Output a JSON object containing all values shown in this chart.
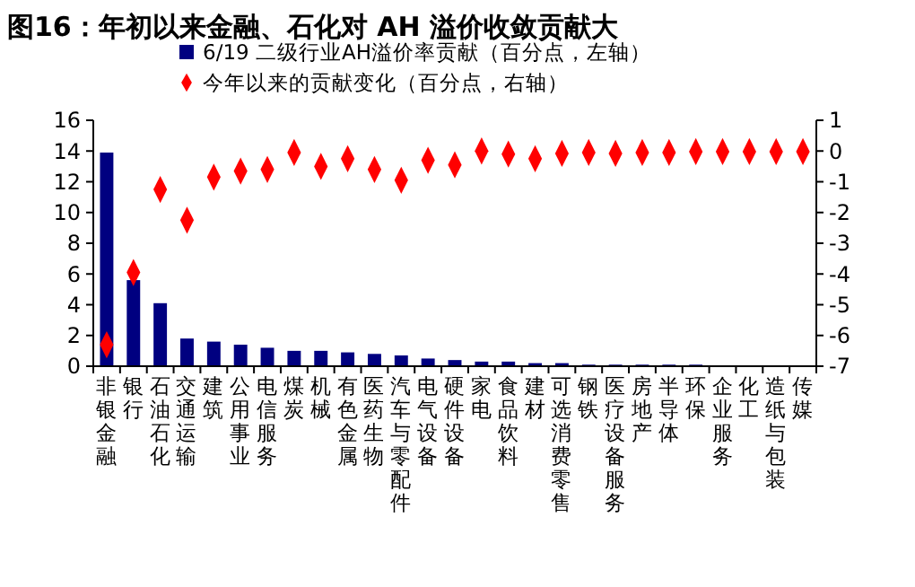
{
  "chart_data": {
    "type": "bar",
    "title": "图16：年初以来金融、石化对 AH 溢价收敛贡献大",
    "categories": [
      "非银金融",
      "银行",
      "石油石化",
      "交通运输",
      "建筑",
      "公用事业",
      "电信服务",
      "煤炭",
      "机械",
      "有色金属",
      "医药生物",
      "汽车与零配件",
      "电气设备",
      "硬件设备",
      "家电",
      "食品饮料",
      "建材",
      "可选消费零售",
      "钢铁",
      "医疗设备服务",
      "房地产",
      "半导体",
      "环保",
      "企业服务",
      "化工",
      "造纸与包装",
      "传媒"
    ],
    "series": [
      {
        "name": "6/19 二级行业AH溢价率贡献（百分点，左轴）",
        "color": "#000080",
        "values": [
          13.9,
          5.6,
          4.1,
          1.8,
          1.6,
          1.4,
          1.2,
          1.0,
          1.0,
          0.9,
          0.8,
          0.7,
          0.5,
          0.4,
          0.3,
          0.3,
          0.2,
          0.2,
          0.1,
          0.1,
          0.1,
          0.1,
          0.1,
          0,
          0,
          0,
          0
        ]
      },
      {
        "name": "今年以来的贡献变化（百分点，右轴）",
        "type": "scatter",
        "axis": "y2",
        "marker": "diamond",
        "color": "#ff0000",
        "values": [
          -6.3,
          -3.95,
          -1.25,
          -2.25,
          -0.85,
          -0.65,
          -0.6,
          -0.05,
          -0.5,
          -0.25,
          -0.6,
          -0.95,
          -0.3,
          -0.45,
          0,
          -0.1,
          -0.25,
          -0.08,
          -0.05,
          -0.08,
          -0.05,
          -0.05,
          -0.02,
          -0.02,
          -0.02,
          -0.02,
          -0.02
        ]
      }
    ],
    "ylim": [
      0,
      16
    ],
    "yticks": [
      0,
      2,
      4,
      6,
      8,
      10,
      12,
      14,
      16
    ],
    "y2lim": [
      -7,
      1
    ],
    "y2ticks": [
      1,
      0,
      -1,
      -2,
      -3,
      -4,
      -5,
      -6,
      -7
    ],
    "legend": "top",
    "grid": false
  }
}
